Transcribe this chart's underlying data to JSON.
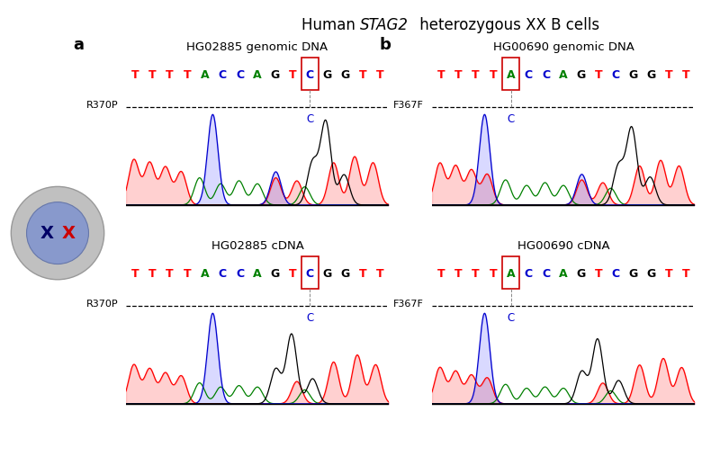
{
  "title": "Human STAG2 heterozygous XX B cells",
  "panel_a_label": "a",
  "panel_b_label": "b",
  "panel_a_top_title": "HG02885 genomic DNA",
  "panel_b_top_title": "HG00690 genomic DNA",
  "panel_a_bot_title": "HG02885 cDNA",
  "panel_b_bot_title": "HG00690 cDNA",
  "label_a_top": "R370P",
  "label_a_bot": "R370P",
  "label_b_top": "F367F",
  "label_b_bot": "F367F",
  "seq_a": [
    "T",
    "T",
    "T",
    "T",
    "A",
    "C",
    "C",
    "A",
    "G",
    "T",
    "C",
    "G",
    "G",
    "T",
    "T"
  ],
  "seq_b": [
    "T",
    "T",
    "T",
    "T",
    "A",
    "C",
    "C",
    "A",
    "G",
    "T",
    "C",
    "G",
    "G",
    "T",
    "T"
  ],
  "seq_colors": {
    "T": "#ff0000",
    "A": "#008000",
    "C": "#0000cd",
    "G": "#000000"
  },
  "highlight_col_a": 10,
  "highlight_col_b": 4,
  "cell_outer_color": "#aaaaaa",
  "cell_inner_color": "#8899cc",
  "cell_x_color1": "#000066",
  "cell_x_color2": "#cc0000",
  "background_color": "#ffffff"
}
